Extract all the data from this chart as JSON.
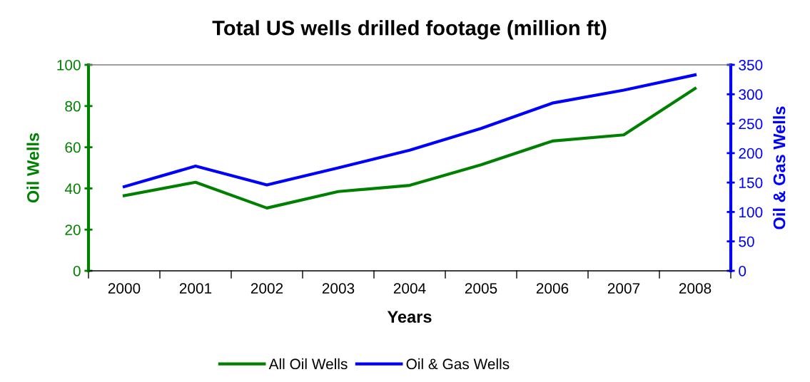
{
  "chart_data": {
    "type": "line",
    "title": "Total US wells drilled footage (million ft)",
    "xlabel": "Years",
    "ylabel": "Oil Wells",
    "y2label": "Oil & Gas Wells",
    "categories": [
      "2000",
      "2001",
      "2002",
      "2003",
      "2004",
      "2005",
      "2006",
      "2007",
      "2008"
    ],
    "series": [
      {
        "name": "All Oil Wells",
        "color": "#008000",
        "values": [
          36.5,
          43,
          30.5,
          38.5,
          41.5,
          51.5,
          63,
          66,
          88.5
        ]
      },
      {
        "name": "Oil & Gas Wells",
        "color": "#0000ff",
        "axis": "y2",
        "values": [
          143,
          178,
          146,
          175,
          205,
          242,
          285,
          307,
          333
        ]
      }
    ],
    "ylim": [
      0,
      100
    ],
    "yticks": [
      0,
      20,
      40,
      60,
      80,
      100
    ],
    "y2lim": [
      0,
      350
    ],
    "y2ticks": [
      0,
      50,
      100,
      150,
      200,
      250,
      300,
      350
    ],
    "grid": false,
    "legend": "bottom",
    "marker": "none",
    "line_style": "solid"
  }
}
